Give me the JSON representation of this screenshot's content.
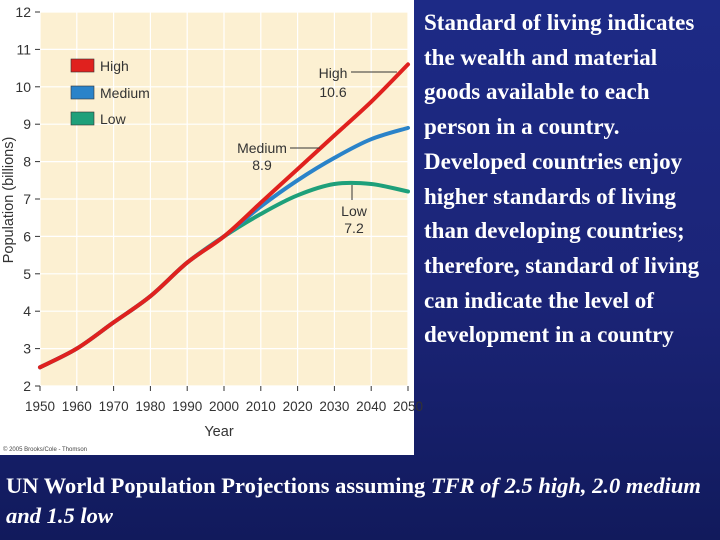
{
  "side_text": "Standard of living indicates the wealth and material goods available to each person in a country. Developed countries enjoy higher standards of living than developing countries; therefore, standard of living can indicate the level of development in a country",
  "caption": {
    "part1": "UN World Population Projections assuming ",
    "part2": "TFR of 2.5 high, 2.0 medium and 1.5 low"
  },
  "copyright": "© 2005 Brooks/Cole - Thomson",
  "colors": {
    "plot_bg": "#fcf0d2",
    "grid": "#ffffff",
    "high": "#e0211e",
    "medium": "#2a83c9",
    "low": "#1ea07a"
  },
  "chart_data": {
    "type": "line",
    "title": "",
    "xlabel": "Year",
    "ylabel": "Population (billions)",
    "xlim": [
      1950,
      2050
    ],
    "ylim": [
      2,
      12
    ],
    "x_ticks": [
      1950,
      1960,
      1970,
      1980,
      1990,
      2000,
      2010,
      2020,
      2030,
      2040,
      2050
    ],
    "y_ticks": [
      2,
      3,
      4,
      5,
      6,
      7,
      8,
      9,
      10,
      11,
      12
    ],
    "grid": true,
    "legend_position": "top-left",
    "series": [
      {
        "name": "High",
        "color": "#e0211e",
        "x": [
          1950,
          1960,
          1970,
          1980,
          1990,
          2000,
          2010,
          2020,
          2030,
          2040,
          2050
        ],
        "y": [
          2.5,
          3.0,
          3.7,
          4.4,
          5.3,
          6.0,
          6.9,
          7.8,
          8.7,
          9.6,
          10.6
        ]
      },
      {
        "name": "Medium",
        "color": "#2a83c9",
        "x": [
          1950,
          1960,
          1970,
          1980,
          1990,
          2000,
          2010,
          2020,
          2030,
          2040,
          2050
        ],
        "y": [
          2.5,
          3.0,
          3.7,
          4.4,
          5.3,
          6.0,
          6.8,
          7.5,
          8.1,
          8.6,
          8.9
        ]
      },
      {
        "name": "Low",
        "color": "#1ea07a",
        "x": [
          1950,
          1960,
          1970,
          1980,
          1990,
          2000,
          2010,
          2020,
          2030,
          2040,
          2050
        ],
        "y": [
          2.5,
          3.0,
          3.7,
          4.4,
          5.3,
          6.0,
          6.6,
          7.1,
          7.4,
          7.4,
          7.2
        ]
      }
    ],
    "annotations": [
      {
        "series": "High",
        "label": "High",
        "value": "10.6"
      },
      {
        "series": "Medium",
        "label": "Medium",
        "value": "8.9"
      },
      {
        "series": "Low",
        "label": "Low",
        "value": "7.2"
      }
    ]
  }
}
